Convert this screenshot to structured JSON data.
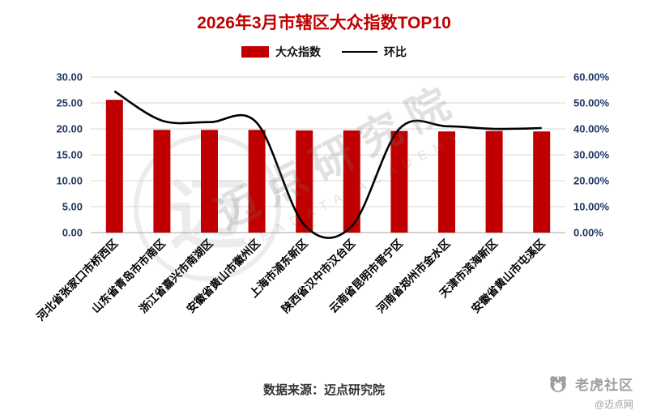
{
  "title": "2026年3月市辖区大众指数TOP10",
  "legend": {
    "bar_label": "大众指数",
    "line_label": "环比"
  },
  "footer": {
    "source": "数据来源：迈点研究院"
  },
  "brand": {
    "community": "老虎社区",
    "handle": "@迈点网"
  },
  "watermark": {
    "text": "迈点研究院",
    "subtext": "MEADATA ACADEMY",
    "emblem": "迈"
  },
  "colors": {
    "bar": "#c00000",
    "line": "#000000",
    "title": "#c00000",
    "axis_text": "#1f3864",
    "grid": "#d9d9d9",
    "axis_line": "#a6a6a6",
    "category_text": "#000000"
  },
  "chart_data": {
    "type": "bar",
    "title": "2026年3月市辖区大众指数TOP10",
    "categories": [
      "河北省张家口市桥西区",
      "山东省青岛市市南区",
      "浙江省嘉兴市南湖区",
      "安徽省黄山市徽州区",
      "上海市浦东新区",
      "陕西省汉中市汉台区",
      "云南省昆明市晋宁区",
      "河南省郑州市金水区",
      "天津市滨海新区",
      "安徽省黄山市屯溪区"
    ],
    "series": [
      {
        "name": "大众指数",
        "type": "bar",
        "axis": "left",
        "values": [
          25.6,
          19.8,
          19.8,
          19.8,
          19.7,
          19.7,
          19.6,
          19.5,
          19.6,
          19.5
        ]
      },
      {
        "name": "环比",
        "type": "line",
        "axis": "right",
        "values": [
          54.5,
          43.2,
          42.6,
          42.3,
          3.0,
          2.5,
          40.0,
          41.0,
          40.0,
          40.3
        ]
      }
    ],
    "left_axis": {
      "min": 0,
      "max": 30,
      "step": 5,
      "labels": [
        "0.00",
        "5.00",
        "10.00",
        "15.00",
        "20.00",
        "25.00",
        "30.00"
      ]
    },
    "right_axis": {
      "min": 0,
      "max": 60,
      "step": 10,
      "labels": [
        "0.00%",
        "10.00%",
        "20.00%",
        "30.00%",
        "40.00%",
        "50.00%",
        "60.00%"
      ]
    },
    "grid": "horizontal",
    "legend_position": "top"
  }
}
